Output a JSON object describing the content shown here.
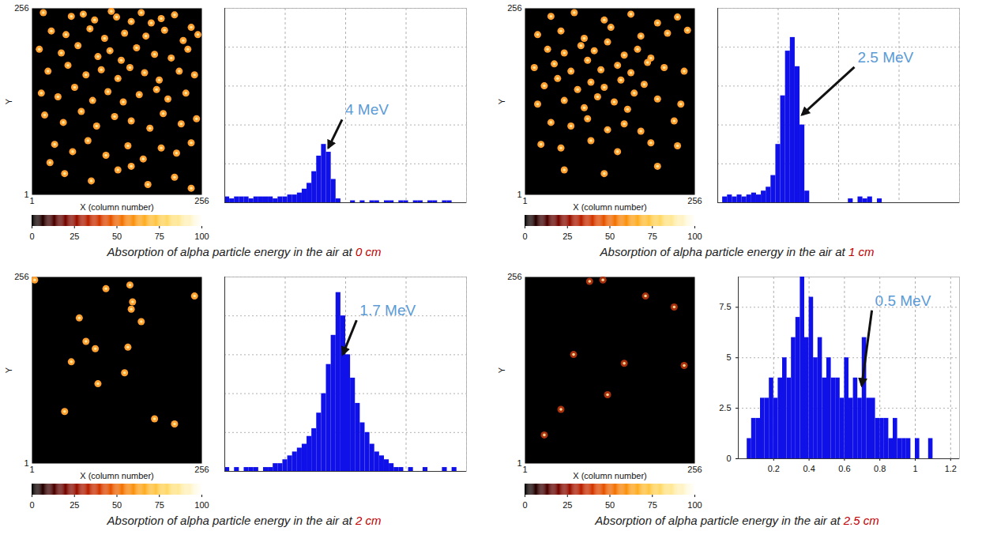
{
  "chart_data": [
    {
      "title": "Absorption of alpha particle energy in the air at 0 cm",
      "charts": [
        {
          "type": "scatter",
          "xlabel": "X (column number)",
          "ylabel": "Y",
          "color": "#ffa030",
          "xlim": [
            1,
            256
          ],
          "ylim": [
            1,
            256
          ],
          "xticks": [
            1,
            256
          ],
          "yticks": [
            1,
            256
          ],
          "x": [
            18,
            60,
            78,
            95,
            120,
            128,
            150,
            165,
            180,
            195,
            215,
            240,
            30,
            52,
            88,
            110,
            140,
            172,
            200,
            228,
            250,
            12,
            45,
            70,
            100,
            118,
            135,
            158,
            185,
            210,
            235,
            25,
            55,
            82,
            105,
            130,
            148,
            170,
            192,
            222,
            245,
            15,
            40,
            65,
            92,
            115,
            138,
            162,
            188,
            205,
            232,
            20,
            48,
            75,
            98,
            125,
            150,
            178,
            198,
            225,
            248,
            35,
            62,
            85,
            112,
            145,
            168,
            195,
            218,
            240,
            50,
            90,
            130,
            175,
            215,
            28,
            150,
            240
          ],
          "y": [
            250,
            245,
            248,
            240,
            252,
            244,
            238,
            250,
            236,
            242,
            247,
            230,
            225,
            220,
            228,
            215,
            222,
            218,
            226,
            212,
            220,
            200,
            195,
            205,
            190,
            198,
            185,
            202,
            193,
            188,
            200,
            170,
            178,
            165,
            172,
            160,
            175,
            168,
            158,
            170,
            165,
            140,
            135,
            148,
            130,
            142,
            128,
            138,
            145,
            132,
            140,
            110,
            100,
            115,
            95,
            108,
            102,
            92,
            112,
            98,
            105,
            70,
            60,
            75,
            55,
            68,
            50,
            65,
            58,
            72,
            30,
            20,
            35,
            15,
            25,
            45,
            40,
            10
          ],
          "colorbar": {
            "range": [
              0,
              100
            ],
            "ticks": [
              0,
              25,
              50,
              75,
              100
            ]
          }
        },
        {
          "type": "histogram",
          "color": "#1010e8",
          "annotation": "4 MeV",
          "grid": true,
          "tick_labels": false,
          "xlim": [
            0,
            100
          ],
          "ylim": [
            0,
            100
          ],
          "xticks": [
            0,
            25,
            50,
            75,
            100
          ],
          "yticks": [
            0,
            20,
            40,
            60,
            80,
            100
          ],
          "bins": [
            0,
            2,
            4,
            6,
            8,
            10,
            12,
            14,
            16,
            18,
            20,
            22,
            24,
            26,
            28,
            30,
            32,
            34,
            36,
            38,
            40,
            42,
            44,
            46,
            48,
            50,
            52,
            54,
            56,
            58,
            60,
            62,
            64,
            66,
            68,
            70,
            72,
            74,
            76,
            78,
            80,
            82,
            84,
            86,
            88,
            90,
            92,
            94,
            96,
            98,
            100
          ],
          "counts": [
            3,
            2,
            3,
            3,
            3,
            2,
            3,
            3,
            3,
            3,
            2,
            3,
            3,
            4,
            4,
            5,
            7,
            10,
            16,
            24,
            30,
            26,
            12,
            2,
            0,
            0,
            1,
            0,
            1,
            0,
            1,
            1,
            0,
            1,
            1,
            0,
            1,
            1,
            0,
            1,
            1,
            0,
            1,
            1,
            0,
            1,
            1,
            0,
            0,
            0
          ]
        }
      ]
    },
    {
      "title": "Absorption of alpha particle energy in the air at 1 cm",
      "charts": [
        {
          "type": "scatter",
          "xlabel": "X (column number)",
          "ylabel": "Y",
          "color": "#ffa030",
          "xlim": [
            1,
            256
          ],
          "ylim": [
            1,
            256
          ],
          "xticks": [
            1,
            256
          ],
          "yticks": [
            1,
            256
          ],
          "x": [
            40,
            75,
            120,
            160,
            200,
            230,
            20,
            55,
            90,
            130,
            175,
            215,
            245,
            35,
            60,
            85,
            105,
            125,
            150,
            170,
            190,
            15,
            45,
            70,
            95,
            115,
            140,
            160,
            185,
            210,
            240,
            30,
            50,
            80,
            100,
            120,
            145,
            165,
            180,
            20,
            60,
            90,
            110,
            135,
            155,
            200,
            235,
            40,
            70,
            95,
            125,
            150,
            175,
            225,
            25,
            55,
            100,
            140,
            190,
            230,
            60,
            120,
            200
          ],
          "y": [
            245,
            250,
            240,
            248,
            236,
            244,
            220,
            225,
            215,
            230,
            218,
            222,
            226,
            200,
            195,
            205,
            198,
            210,
            192,
            200,
            188,
            175,
            180,
            170,
            185,
            172,
            178,
            168,
            182,
            175,
            170,
            150,
            160,
            145,
            155,
            148,
            158,
            140,
            152,
            125,
            130,
            120,
            135,
            128,
            118,
            132,
            125,
            100,
            95,
            105,
            90,
            98,
            88,
            102,
            70,
            65,
            75,
            60,
            72,
            68,
            35,
            30,
            40
          ],
          "colorbar": {
            "range": [
              0,
              100
            ],
            "ticks": [
              0,
              25,
              50,
              75,
              100
            ]
          }
        },
        {
          "type": "histogram",
          "color": "#1010e8",
          "annotation": "2.5 MeV",
          "grid": true,
          "tick_labels": false,
          "xlim": [
            0,
            100
          ],
          "ylim": [
            0,
            100
          ],
          "xticks": [
            0,
            25,
            50,
            75,
            100
          ],
          "yticks": [
            0,
            20,
            40,
            60,
            80,
            100
          ],
          "bins": [
            0,
            2,
            4,
            6,
            8,
            10,
            12,
            14,
            16,
            18,
            20,
            22,
            24,
            26,
            28,
            30,
            32,
            34,
            36,
            38,
            40,
            42,
            44,
            46,
            48,
            50,
            52,
            54,
            56,
            58,
            60,
            62,
            64,
            66,
            68,
            70,
            72,
            74,
            76,
            78,
            80,
            82,
            84,
            86,
            88,
            90,
            92,
            94,
            96,
            98,
            100
          ],
          "counts": [
            0,
            3,
            4,
            3,
            4,
            3,
            4,
            5,
            4,
            6,
            8,
            14,
            30,
            55,
            78,
            85,
            70,
            40,
            6,
            0,
            0,
            0,
            0,
            0,
            0,
            0,
            0,
            2,
            0,
            3,
            2,
            3,
            0,
            2,
            0,
            0,
            0,
            0,
            0,
            0,
            0,
            0,
            0,
            0,
            0,
            0,
            0,
            0,
            0,
            0
          ]
        }
      ]
    },
    {
      "title": "Absorption of alpha particle energy in the air at 2 cm",
      "charts": [
        {
          "type": "scatter",
          "xlabel": "X (column number)",
          "ylabel": "Y",
          "color": "#ffa030",
          "xlim": [
            1,
            256
          ],
          "ylim": [
            1,
            256
          ],
          "xticks": [
            1,
            256
          ],
          "yticks": [
            1,
            256
          ],
          "x": [
            5,
            72,
            112,
            148,
            152,
            150,
            245,
            60,
            82,
            96,
            100,
            140,
            145,
            165,
            50,
            185,
            215
          ],
          "y": [
            252,
            200,
            240,
            245,
            222,
            212,
            230,
            140,
            168,
            158,
            110,
            125,
            160,
            195,
            72,
            62,
            55
          ],
          "colorbar": {
            "range": [
              0,
              100
            ],
            "ticks": [
              0,
              25,
              50,
              75,
              100
            ]
          }
        },
        {
          "type": "histogram",
          "color": "#1010e8",
          "annotation": "1.7 MeV",
          "grid": true,
          "tick_labels": false,
          "xlim": [
            0,
            100
          ],
          "ylim": [
            0,
            100
          ],
          "xticks": [
            0,
            25,
            50,
            75,
            100
          ],
          "yticks": [
            0,
            20,
            40,
            60,
            80,
            100
          ],
          "bins": [
            0,
            2,
            4,
            6,
            8,
            10,
            12,
            14,
            16,
            18,
            20,
            22,
            24,
            26,
            28,
            30,
            32,
            34,
            36,
            38,
            40,
            42,
            44,
            46,
            48,
            50,
            52,
            54,
            56,
            58,
            60,
            62,
            64,
            66,
            68,
            70,
            72,
            74,
            76,
            78,
            80,
            82,
            84,
            86,
            88,
            90,
            92,
            94,
            96,
            98,
            100
          ],
          "counts": [
            2,
            0,
            2,
            0,
            2,
            2,
            2,
            0,
            2,
            2,
            4,
            4,
            6,
            8,
            10,
            12,
            14,
            18,
            22,
            30,
            40,
            55,
            70,
            92,
            80,
            60,
            48,
            35,
            25,
            20,
            14,
            10,
            8,
            6,
            4,
            2,
            2,
            0,
            2,
            0,
            0,
            2,
            0,
            0,
            0,
            2,
            0,
            2,
            0,
            0
          ]
        }
      ]
    },
    {
      "title": "Absorption of alpha particle energy in the air at 2.5 cm",
      "charts": [
        {
          "type": "scatter",
          "xlabel": "X (column number)",
          "ylabel": "Y",
          "color": "#a8300c",
          "xlim": [
            1,
            256
          ],
          "ylim": [
            1,
            256
          ],
          "xticks": [
            1,
            256
          ],
          "yticks": [
            1,
            256
          ],
          "x": [
            98,
            118,
            74,
            150,
            225,
            125,
            55,
            240,
            182,
            30
          ],
          "y": [
            250,
            252,
            150,
            138,
            215,
            95,
            75,
            135,
            230,
            40
          ],
          "colorbar": {
            "range": [
              0,
              100
            ],
            "ticks": [
              0,
              25,
              50,
              75,
              100
            ]
          }
        },
        {
          "type": "histogram",
          "color": "#1010e8",
          "annotation": "0.5 MeV",
          "grid": true,
          "tick_labels": true,
          "xlim": [
            0,
            1.25
          ],
          "ylim": [
            0,
            9
          ],
          "xticks": [
            0.2,
            0.4,
            0.6,
            0.8,
            1,
            1.2
          ],
          "yticks": [
            0,
            2.5,
            5,
            7.5
          ],
          "bins": [
            0.05,
            0.075,
            0.1,
            0.125,
            0.15,
            0.175,
            0.2,
            0.225,
            0.25,
            0.275,
            0.3,
            0.325,
            0.35,
            0.375,
            0.4,
            0.425,
            0.45,
            0.475,
            0.5,
            0.525,
            0.55,
            0.575,
            0.6,
            0.625,
            0.65,
            0.675,
            0.7,
            0.725,
            0.75,
            0.775,
            0.8,
            0.825,
            0.85,
            0.875,
            0.9,
            0.925,
            0.95,
            0.975,
            1,
            1.025,
            1.05,
            1.075,
            1.1
          ],
          "counts": [
            1,
            2,
            2,
            3,
            3,
            4,
            3,
            4,
            5,
            4,
            6,
            7,
            9,
            6,
            8,
            5,
            6,
            4,
            5,
            4,
            4,
            3,
            5,
            3,
            4,
            3,
            6,
            3,
            3,
            2,
            2,
            2,
            1,
            2,
            1,
            1,
            1,
            0,
            1,
            0,
            0,
            1
          ]
        }
      ]
    }
  ]
}
